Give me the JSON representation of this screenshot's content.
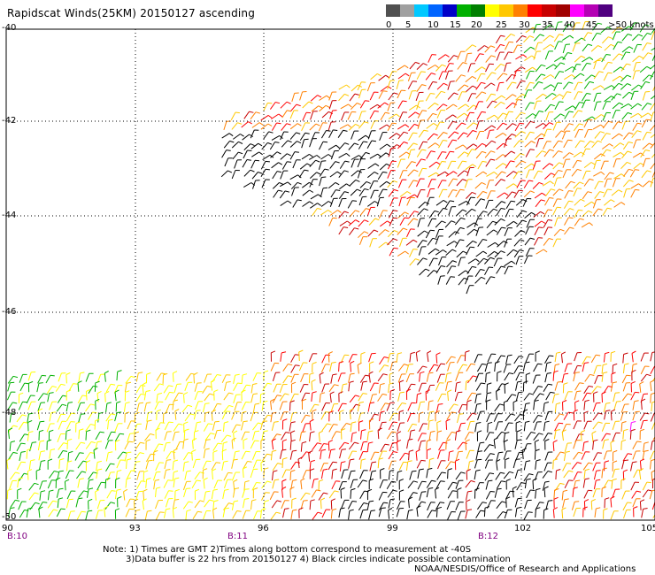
{
  "title": "Rapidscat Winds(25KM) 20150127 ascending",
  "legend": {
    "colors": [
      "#505050",
      "#a0a0a0",
      "#00c8ff",
      "#0064ff",
      "#0000c8",
      "#00b000",
      "#008000",
      "#ffff00",
      "#ffc800",
      "#ff8000",
      "#ff0000",
      "#c80000",
      "#a00000",
      "#ff00ff",
      "#b400b4",
      "#500080"
    ],
    "labels": [
      "0",
      "5",
      "10",
      "15",
      "20",
      "25",
      "30",
      "35",
      "40",
      "45",
      ">50 knots"
    ]
  },
  "lat_labels": [
    "-40",
    "-42",
    "-44",
    "-46",
    "-48",
    "-50"
  ],
  "lon_labels": [
    "90",
    "93",
    "96",
    "99",
    "102",
    "105"
  ],
  "time_marks": [
    "B:10",
    "B:11",
    "B:12"
  ],
  "notes": {
    "line1": "Note: 1) Times are GMT 2)Times along bottom correspond to measurement at -40S",
    "line2": "3)Data buffer is 22 hrs from 20150127 4) Black circles indicate possible contamination",
    "credit": "NOAA/NESDIS/Office of Research and Applications"
  }
}
